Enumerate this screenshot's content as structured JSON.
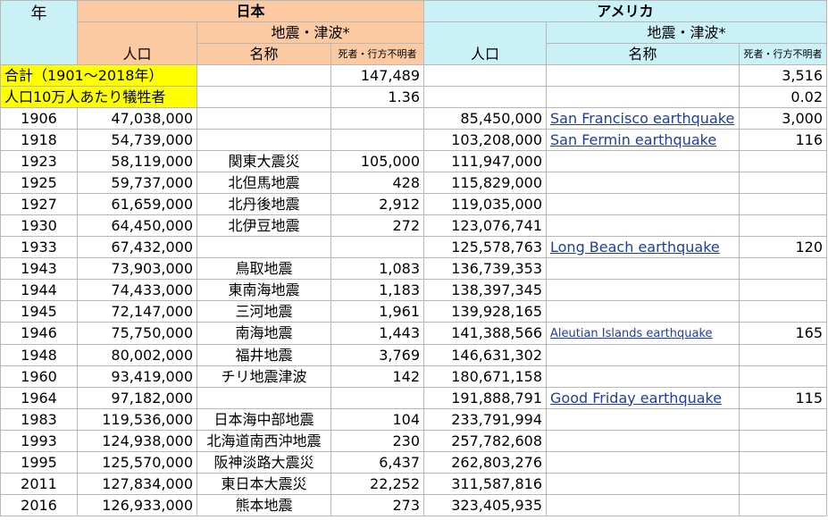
{
  "table": {
    "header": {
      "year": "年",
      "japan": "日本",
      "america": "アメリカ",
      "population": "人口",
      "quake": "地震・津波*",
      "name": "名称",
      "deaths": "死者・行方不明者"
    },
    "summary": [
      {
        "label": "合計（1901～2018年）",
        "japan": "147,489",
        "america": "3,516"
      },
      {
        "label": "人口10万人あたり犠牲者",
        "japan": "1.36",
        "america": "0.02"
      }
    ],
    "rows": [
      [
        "1906",
        "47,038,000",
        null,
        null,
        "85,450,000",
        "San Francisco earthquake",
        "3,000"
      ],
      [
        "1918",
        "54,739,000",
        null,
        null,
        "103,208,000",
        "San Fermin earthquake",
        "116"
      ],
      [
        "1923",
        "58,119,000",
        "関東大震災",
        "105,000",
        "111,947,000",
        null,
        null
      ],
      [
        "1925",
        "59,737,000",
        "北但馬地震",
        "428",
        "115,829,000",
        null,
        null
      ],
      [
        "1927",
        "61,659,000",
        "北丹後地震",
        "2,912",
        "119,035,000",
        null,
        null
      ],
      [
        "1930",
        "64,450,000",
        "北伊豆地震",
        "272",
        "123,076,741",
        null,
        null
      ],
      [
        "1933",
        "67,432,000",
        null,
        null,
        "125,578,763",
        "Long Beach earthquake",
        "120"
      ],
      [
        "1943",
        "73,903,000",
        "鳥取地震",
        "1,083",
        "136,739,353",
        null,
        null
      ],
      [
        "1944",
        "74,433,000",
        "東南海地震",
        "1,183",
        "138,397,345",
        null,
        null
      ],
      [
        "1945",
        "72,147,000",
        "三河地震",
        "1,961",
        "139,928,165",
        null,
        null
      ],
      [
        "1946",
        "75,750,000",
        "南海地震",
        "1,443",
        "141,388,566",
        "Aleutian Islands earthquake",
        "165"
      ],
      [
        "1948",
        "80,002,000",
        "福井地震",
        "3,769",
        "146,631,302",
        null,
        null
      ],
      [
        "1960",
        "93,419,000",
        "チリ地震津波",
        "142",
        "180,671,158",
        null,
        null
      ],
      [
        "1964",
        "97,182,000",
        null,
        null,
        "191,888,791",
        "Good Friday earthquake",
        "115"
      ],
      [
        "1983",
        "119,536,000",
        "日本海中部地震",
        "104",
        "233,791,994",
        null,
        null
      ],
      [
        "1993",
        "124,938,000",
        "北海道南西沖地震",
        "230",
        "257,782,608",
        null,
        null
      ],
      [
        "1995",
        "125,570,000",
        "阪神淡路大震災",
        "6,437",
        "262,803,276",
        null,
        null
      ],
      [
        "2011",
        "127,834,000",
        "東日本大震災",
        "22,252",
        "311,587,816",
        null,
        null
      ],
      [
        "2016",
        "126,933,000",
        "熊本地震",
        "273",
        "323,405,935",
        null,
        null
      ]
    ]
  }
}
